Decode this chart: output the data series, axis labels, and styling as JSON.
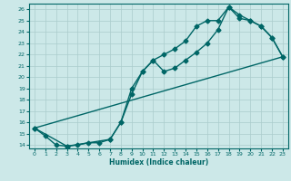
{
  "title": "",
  "xlabel": "Humidex (Indice chaleur)",
  "bg_color": "#cce8e8",
  "line_color": "#006666",
  "grid_color": "#aacccc",
  "xlim": [
    -0.5,
    23.5
  ],
  "ylim": [
    13.7,
    26.5
  ],
  "xticks": [
    0,
    1,
    2,
    3,
    4,
    5,
    6,
    7,
    8,
    9,
    10,
    11,
    12,
    13,
    14,
    15,
    16,
    17,
    18,
    19,
    20,
    21,
    22,
    23
  ],
  "yticks": [
    14,
    15,
    16,
    17,
    18,
    19,
    20,
    21,
    22,
    23,
    24,
    25,
    26
  ],
  "line1_x": [
    0,
    1,
    2,
    3,
    4,
    5,
    6,
    7,
    8,
    9,
    10,
    11,
    12,
    13,
    14,
    15,
    16,
    17,
    18,
    19,
    20,
    21,
    22,
    23
  ],
  "line1_y": [
    15.5,
    14.8,
    14.0,
    13.9,
    14.0,
    14.2,
    14.2,
    14.5,
    16.0,
    18.5,
    20.5,
    21.5,
    20.5,
    20.8,
    21.5,
    22.2,
    23.0,
    24.2,
    26.2,
    25.2,
    25.0,
    24.5,
    23.5,
    21.8
  ],
  "line2_x": [
    0,
    3,
    7,
    8,
    9,
    10,
    11,
    12,
    13,
    14,
    15,
    16,
    17,
    18,
    19,
    20,
    21,
    22,
    23
  ],
  "line2_y": [
    15.5,
    13.9,
    14.5,
    16.0,
    19.0,
    20.5,
    21.5,
    22.0,
    22.5,
    23.2,
    24.5,
    25.0,
    25.0,
    26.2,
    25.5,
    25.0,
    24.5,
    23.5,
    21.8
  ],
  "line3_x": [
    0,
    23
  ],
  "line3_y": [
    15.5,
    21.8
  ],
  "marker_size": 2.5,
  "linewidth": 1.0
}
